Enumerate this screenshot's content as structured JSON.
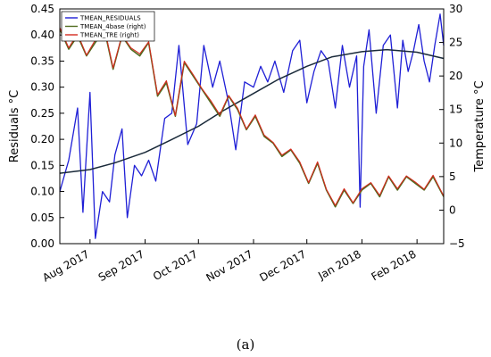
{
  "caption": "(a)",
  "colors": {
    "residuals": "#1f1fd6",
    "tmean_trend": "#1a2a3a",
    "base": "#4f6b1e",
    "tre": "#d42a1e"
  },
  "chart_data": {
    "type": "line",
    "title": "",
    "xlabel": "",
    "ylabel": "Residuals °C",
    "y2label": "Temperature °C",
    "ylim": [
      0.0,
      0.45
    ],
    "y2lim": [
      -5,
      30
    ],
    "yticks": [
      "0.00",
      "0.05",
      "0.10",
      "0.15",
      "0.20",
      "0.25",
      "0.30",
      "0.35",
      "0.40",
      "0.45"
    ],
    "y2ticks": [
      "−5",
      "0",
      "5",
      "10",
      "15",
      "20",
      "25",
      "30"
    ],
    "y2tick_values": [
      -5,
      0,
      5,
      10,
      15,
      20,
      25,
      30
    ],
    "xlim": [
      "2017-07-15",
      "2018-02-16"
    ],
    "xtick_dates": [
      "2017-08-01",
      "2017-09-01",
      "2017-10-01",
      "2017-11-01",
      "2017-12-01",
      "2018-01-01",
      "2018-02-01"
    ],
    "xticks": [
      "Aug 2017",
      "Sep 2017",
      "Oct 2017",
      "Nov 2017",
      "Dec 2017",
      "Jan 2018",
      "Feb 2018"
    ],
    "grid": false,
    "legend_position": "top-left",
    "legend": [
      "TMEAN_RESIDUALS",
      "TMEAN_4base (right)",
      "TMEAN_TRE (right)"
    ],
    "series": [
      {
        "name": "TMEAN_RESIDUALS",
        "axis": "left",
        "x": [
          "2017-07-15",
          "2017-07-20",
          "2017-07-25",
          "2017-07-28",
          "2017-08-01",
          "2017-08-04",
          "2017-08-08",
          "2017-08-12",
          "2017-08-15",
          "2017-08-19",
          "2017-08-22",
          "2017-08-26",
          "2017-08-30",
          "2017-09-03",
          "2017-09-07",
          "2017-09-12",
          "2017-09-16",
          "2017-09-20",
          "2017-09-25",
          "2017-09-30",
          "2017-10-04",
          "2017-10-09",
          "2017-10-13",
          "2017-10-18",
          "2017-10-22",
          "2017-10-27",
          "2017-11-01",
          "2017-11-05",
          "2017-11-09",
          "2017-11-13",
          "2017-11-18",
          "2017-11-23",
          "2017-11-27",
          "2017-12-01",
          "2017-12-05",
          "2017-12-09",
          "2017-12-13",
          "2017-12-17",
          "2017-12-21",
          "2017-12-25",
          "2017-12-29",
          "2017-12-31",
          "2018-01-02",
          "2018-01-05",
          "2018-01-09",
          "2018-01-13",
          "2018-01-17",
          "2018-01-21",
          "2018-01-24",
          "2018-01-27",
          "2018-01-30",
          "2018-02-02",
          "2018-02-05",
          "2018-02-08",
          "2018-02-11",
          "2018-02-14",
          "2018-02-16"
        ],
        "values": [
          0.1,
          0.16,
          0.26,
          0.06,
          0.29,
          0.01,
          0.1,
          0.08,
          0.17,
          0.22,
          0.05,
          0.15,
          0.13,
          0.16,
          0.12,
          0.24,
          0.25,
          0.38,
          0.19,
          0.23,
          0.38,
          0.3,
          0.35,
          0.27,
          0.18,
          0.31,
          0.3,
          0.34,
          0.31,
          0.35,
          0.29,
          0.37,
          0.39,
          0.27,
          0.33,
          0.37,
          0.35,
          0.26,
          0.38,
          0.3,
          0.36,
          0.07,
          0.34,
          0.41,
          0.25,
          0.38,
          0.4,
          0.26,
          0.39,
          0.33,
          0.37,
          0.42,
          0.35,
          0.31,
          0.38,
          0.44,
          0.38
        ]
      },
      {
        "name": "",
        "axis": "left",
        "x": [
          "2017-07-15",
          "2017-08-01",
          "2017-08-15",
          "2017-09-01",
          "2017-09-15",
          "2017-10-01",
          "2017-10-15",
          "2017-11-01",
          "2017-11-15",
          "2017-12-01",
          "2017-12-15",
          "2018-01-01",
          "2018-01-15",
          "2018-02-01",
          "2018-02-16"
        ],
        "values": [
          0.135,
          0.142,
          0.155,
          0.175,
          0.198,
          0.225,
          0.255,
          0.288,
          0.315,
          0.34,
          0.358,
          0.368,
          0.372,
          0.367,
          0.355
        ]
      },
      {
        "name": "TMEAN_4base (right)",
        "axis": "right",
        "x": [
          "2017-07-15",
          "2017-07-20",
          "2017-07-25",
          "2017-07-30",
          "2017-08-04",
          "2017-08-09",
          "2017-08-14",
          "2017-08-19",
          "2017-08-24",
          "2017-08-29",
          "2017-09-03",
          "2017-09-08",
          "2017-09-13",
          "2017-09-18",
          "2017-09-23",
          "2017-09-28",
          "2017-10-03",
          "2017-10-08",
          "2017-10-13",
          "2017-10-18",
          "2017-10-23",
          "2017-10-28",
          "2017-11-02",
          "2017-11-07",
          "2017-11-12",
          "2017-11-17",
          "2017-11-22",
          "2017-11-27",
          "2017-12-02",
          "2017-12-07",
          "2017-12-12",
          "2017-12-17",
          "2017-12-22",
          "2017-12-27",
          "2018-01-01",
          "2018-01-06",
          "2018-01-11",
          "2018-01-16",
          "2018-01-21",
          "2018-01-26",
          "2018-01-31",
          "2018-02-05",
          "2018-02-10",
          "2018-02-16"
        ],
        "values": [
          27,
          24,
          26,
          23,
          25,
          27,
          21,
          26,
          24,
          23,
          25,
          17,
          19,
          14,
          22,
          20,
          18,
          16,
          14,
          17,
          15,
          12,
          14,
          11,
          10,
          8,
          9,
          7,
          4,
          7,
          3,
          0.5,
          3,
          1,
          3,
          4,
          2,
          5,
          3,
          5,
          4,
          3,
          5,
          2
        ]
      },
      {
        "name": "TMEAN_TRE (right)",
        "axis": "right",
        "x": [
          "2017-07-15",
          "2017-07-20",
          "2017-07-25",
          "2017-07-30",
          "2017-08-04",
          "2017-08-09",
          "2017-08-14",
          "2017-08-19",
          "2017-08-24",
          "2017-08-29",
          "2017-09-03",
          "2017-09-08",
          "2017-09-13",
          "2017-09-18",
          "2017-09-23",
          "2017-09-28",
          "2017-10-03",
          "2017-10-08",
          "2017-10-13",
          "2017-10-18",
          "2017-10-23",
          "2017-10-28",
          "2017-11-02",
          "2017-11-07",
          "2017-11-12",
          "2017-11-17",
          "2017-11-22",
          "2017-11-27",
          "2017-12-02",
          "2017-12-07",
          "2017-12-12",
          "2017-12-17",
          "2017-12-22",
          "2017-12-27",
          "2018-01-01",
          "2018-01-06",
          "2018-01-11",
          "2018-01-16",
          "2018-01-21",
          "2018-01-26",
          "2018-01-31",
          "2018-02-05",
          "2018-02-10",
          "2018-02-16"
        ],
        "values": [
          27.2,
          24.2,
          26.3,
          23.1,
          25.4,
          27.3,
          21.2,
          26.1,
          24.2,
          23.3,
          25.1,
          17.2,
          19.3,
          14.1,
          22.2,
          20.2,
          18.1,
          16.3,
          14.2,
          17.1,
          15.2,
          12.1,
          14.2,
          11.2,
          10.1,
          8.2,
          9.1,
          7.2,
          4.1,
          7.2,
          3.1,
          0.7,
          3.2,
          1.1,
          3.2,
          4.1,
          2.2,
          5.1,
          3.2,
          5.1,
          4.2,
          3.1,
          5.2,
          2.1
        ]
      }
    ]
  }
}
